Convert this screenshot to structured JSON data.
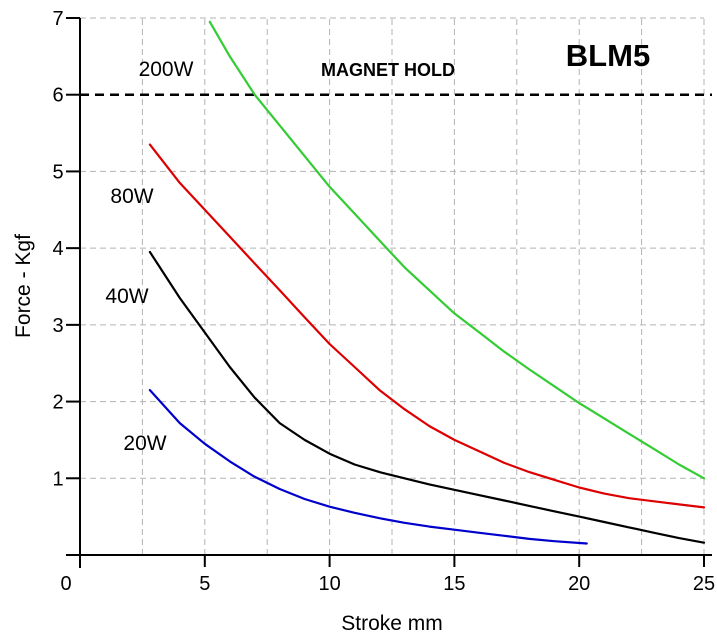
{
  "chart_data": {
    "type": "line",
    "title": "BLM5",
    "xlabel": "Stroke mm",
    "ylabel": "Force - Kgf",
    "xlim": [
      0,
      25
    ],
    "ylim": [
      0,
      7
    ],
    "xticks": [
      "0",
      "5",
      "10",
      "15",
      "20",
      "25"
    ],
    "yticks": [
      "1",
      "2",
      "3",
      "4",
      "5",
      "6",
      "7"
    ],
    "grid": "dashed",
    "reference_line": {
      "y": 6,
      "label": "MAGNET HOLD",
      "style": "dashed",
      "color": "#000000"
    },
    "series": [
      {
        "name": "200W",
        "color": "#33cc33",
        "x": [
          5.2,
          6,
          7,
          8,
          9,
          10,
          11,
          12,
          13,
          14,
          15,
          16,
          17,
          18,
          19,
          20,
          21,
          22,
          23,
          24,
          25
        ],
        "y": [
          6.95,
          6.5,
          6.0,
          5.6,
          5.2,
          4.8,
          4.45,
          4.1,
          3.75,
          3.45,
          3.15,
          2.9,
          2.65,
          2.42,
          2.2,
          1.98,
          1.78,
          1.58,
          1.38,
          1.18,
          1.0
        ]
      },
      {
        "name": "80W",
        "color": "#dd0000",
        "x": [
          2.8,
          4,
          5,
          6,
          7,
          8,
          9,
          10,
          11,
          12,
          13,
          14,
          15,
          16,
          17,
          18,
          19,
          20,
          21,
          22,
          23,
          24,
          25
        ],
        "y": [
          5.35,
          4.85,
          4.5,
          4.15,
          3.8,
          3.45,
          3.1,
          2.75,
          2.45,
          2.15,
          1.9,
          1.68,
          1.5,
          1.35,
          1.2,
          1.08,
          0.98,
          0.88,
          0.8,
          0.74,
          0.7,
          0.66,
          0.62
        ]
      },
      {
        "name": "40W",
        "color": "#000000",
        "x": [
          2.8,
          4,
          5,
          6,
          7,
          8,
          9,
          10,
          11,
          12,
          13,
          14,
          15,
          16,
          17,
          18,
          19,
          20,
          21,
          22,
          23,
          24,
          25
        ],
        "y": [
          3.95,
          3.35,
          2.9,
          2.45,
          2.05,
          1.72,
          1.5,
          1.32,
          1.18,
          1.08,
          1.0,
          0.92,
          0.85,
          0.78,
          0.71,
          0.64,
          0.57,
          0.5,
          0.43,
          0.36,
          0.29,
          0.22,
          0.16
        ]
      },
      {
        "name": "20W",
        "color": "#0000cc",
        "x": [
          2.8,
          4,
          5,
          6,
          7,
          8,
          9,
          10,
          11,
          12,
          13,
          14,
          15,
          16,
          17,
          18,
          19,
          20.3
        ],
        "y": [
          2.15,
          1.72,
          1.45,
          1.22,
          1.02,
          0.86,
          0.73,
          0.63,
          0.55,
          0.48,
          0.42,
          0.37,
          0.33,
          0.29,
          0.25,
          0.21,
          0.18,
          0.15
        ]
      }
    ]
  }
}
